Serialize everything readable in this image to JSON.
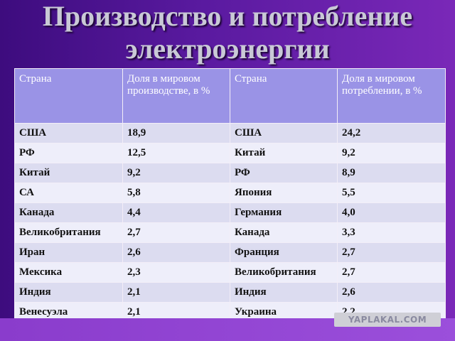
{
  "slide": {
    "title_line1": "Производство и потребление",
    "title_line2": "электроэнергии"
  },
  "table": {
    "headers": [
      "Страна",
      "Доля в мировом производстве, в %",
      "Страна",
      "Доля в мировом потреблении, в %"
    ],
    "rows": [
      [
        "США",
        "18,9",
        "США",
        "24,2"
      ],
      [
        "РФ",
        "12,5",
        "Китай",
        "9,2"
      ],
      [
        "Китай",
        "9,2",
        "РФ",
        "8,9"
      ],
      [
        "СА",
        "5,8",
        "Япония",
        "5,5"
      ],
      [
        "Канада",
        "4,4",
        "Германия",
        "4,0"
      ],
      [
        "Великобритания",
        "2,7",
        "Канада",
        "3,3"
      ],
      [
        "Иран",
        "2,6",
        "Франция",
        "2,7"
      ],
      [
        "Мексика",
        "2,3",
        "Великобритания",
        "2,7"
      ],
      [
        "Индия",
        "2,1",
        "Индия",
        "2,6"
      ],
      [
        "Венесуэла",
        "2,1",
        "Украина",
        "2,2"
      ]
    ]
  },
  "watermark": "YAPLAKAL.COM",
  "colors": {
    "background": "#5a1aa0",
    "header_fill": "#9a93e6",
    "row_fill_a": "#dcdcf0",
    "row_fill_b": "#eeeefa",
    "title_text": "#c9c9d6"
  }
}
